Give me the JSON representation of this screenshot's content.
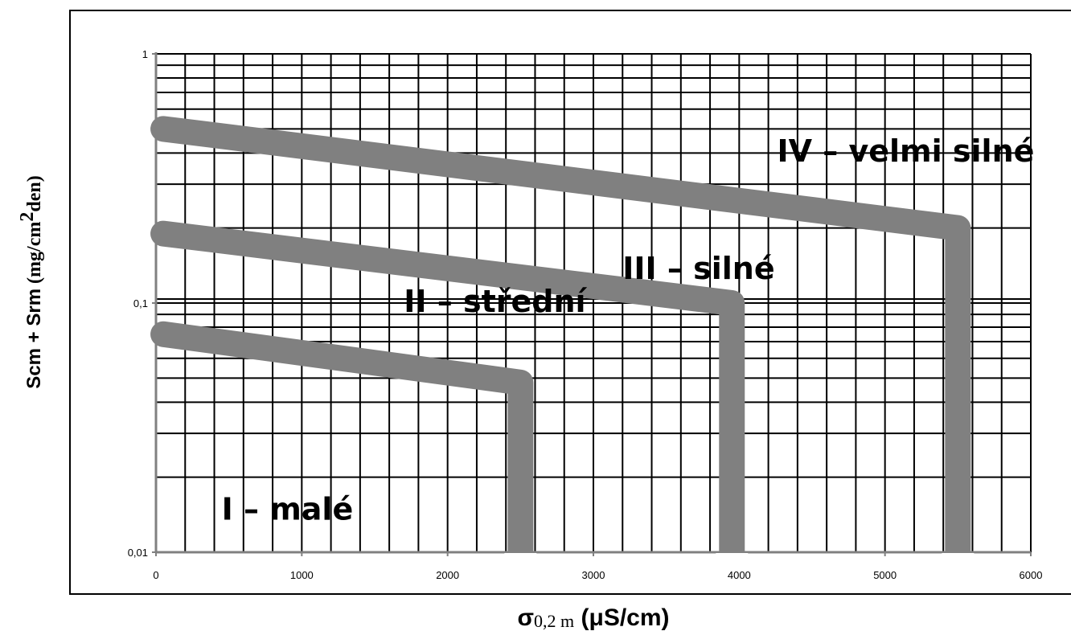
{
  "chart_data": {
    "type": "line",
    "x_axis": {
      "label_main": "σ",
      "label_sub": "0,2 m",
      "label_units": " (μS/cm)",
      "range": [
        0,
        6000
      ],
      "major_ticks": [
        0,
        1000,
        2000,
        3000,
        4000,
        5000,
        6000
      ],
      "tick_labels": [
        "0",
        "1000",
        "2000",
        "3000",
        "4000",
        "5000",
        "6000"
      ],
      "minor_step": 200
    },
    "y_axis": {
      "label_parts": [
        "S",
        "cm",
        " + S",
        "rm",
        " (mg/cm",
        "2",
        "den)"
      ],
      "scale": "log",
      "range": [
        0.01,
        1
      ],
      "major_ticks": [
        0.01,
        0.1,
        1
      ],
      "tick_labels": [
        "0,01",
        "0,1",
        "1"
      ]
    },
    "grid": true,
    "series": [
      {
        "color": "#808080",
        "x": [
          50,
          2500,
          2500
        ],
        "y": [
          0.075,
          0.048,
          0.01
        ]
      },
      {
        "color": "#808080",
        "x": [
          50,
          3950,
          3950
        ],
        "y": [
          0.19,
          0.1,
          0.01
        ]
      },
      {
        "color": "#808080",
        "x": [
          50,
          5500,
          5500
        ],
        "y": [
          0.5,
          0.2,
          0.01
        ]
      }
    ],
    "annotations": [
      {
        "text": "I – malé",
        "x": 450,
        "y": 0.0135
      },
      {
        "text": "II – střední",
        "x": 1700,
        "y": 0.092
      },
      {
        "text": "III – silné",
        "x": 3200,
        "y": 0.125
      },
      {
        "text": "IV – velmi silné",
        "x": 4260,
        "y": 0.37
      }
    ]
  }
}
